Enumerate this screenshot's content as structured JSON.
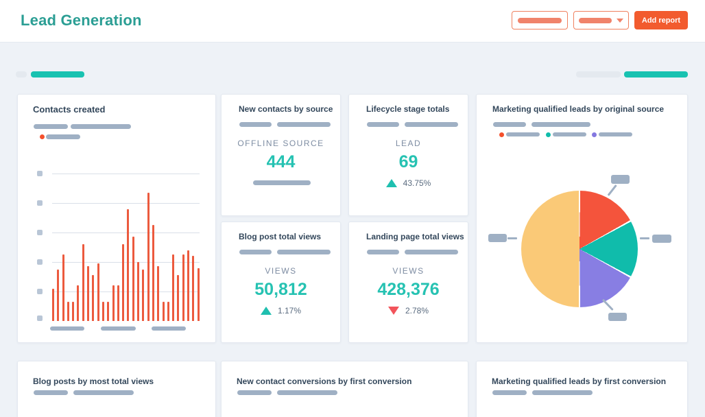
{
  "colors": {
    "accent_teal": "#26c2b2",
    "accent_orange": "#f25b2e",
    "bar_color": "#ec5a3e",
    "delta_up": "#1fbfaf",
    "delta_down": "#f2545b",
    "title_teal": "#2b9e94"
  },
  "header": {
    "title": "Lead Generation",
    "add_report_label": "Add report"
  },
  "cards": {
    "contacts_created": {
      "title": "Contacts created"
    },
    "new_contacts_by_source": {
      "title": "New contacts by source",
      "metric_label": "OFFLINE SOURCE",
      "value": "444"
    },
    "lifecycle_stage_totals": {
      "title": "Lifecycle stage totals",
      "metric_label": "LEAD",
      "value": "69",
      "delta": "43.75%",
      "delta_direction": "up"
    },
    "blog_post_total_views": {
      "title": "Blog post total views",
      "metric_label": "VIEWS",
      "value": "50,812",
      "delta": "1.17%",
      "delta_direction": "up"
    },
    "landing_page_total_views": {
      "title": "Landing page total views",
      "metric_label": "VIEWS",
      "value": "428,376",
      "delta": "2.78%",
      "delta_direction": "down"
    },
    "mql_by_original_source": {
      "title": "Marketing qualified leads by original source"
    },
    "blog_posts_by_most_total_views": {
      "title": "Blog posts by most total views"
    },
    "new_contact_conversions_by_first_conversion": {
      "title": "New contact conversions by first conversion"
    },
    "mql_by_first_conversion": {
      "title": "Marketing qualified leads by first conversion"
    }
  },
  "chart_data": [
    {
      "type": "bar",
      "title": "Contacts created",
      "xlabel": "",
      "ylabel": "",
      "ylim": [
        0,
        100
      ],
      "grid": true,
      "note": "axis tick labels and legend are skeleton placeholder bars",
      "bar_color": "#ec5a3e",
      "values": [
        22,
        35,
        45,
        13,
        13,
        24,
        52,
        37,
        31,
        39,
        13,
        13,
        24,
        24,
        52,
        76,
        57,
        40,
        35,
        87,
        65,
        37,
        13,
        13,
        45,
        31,
        45,
        48,
        44,
        36
      ]
    },
    {
      "type": "pie",
      "title": "Marketing qualified leads by original source",
      "note": "slice and legend labels are skeleton placeholder bars; slices start at 12 o'clock clockwise",
      "legend_colors": [
        "#f4502c",
        "#10bcab",
        "#8478e0"
      ],
      "slices": [
        {
          "name": "slice-1",
          "color": "#f4543c",
          "percent": 17
        },
        {
          "name": "slice-2",
          "color": "#10bcab",
          "percent": 16
        },
        {
          "name": "slice-3",
          "color": "#887ee3",
          "percent": 17
        },
        {
          "name": "slice-4",
          "color": "#fac977",
          "percent": 50
        }
      ]
    }
  ]
}
